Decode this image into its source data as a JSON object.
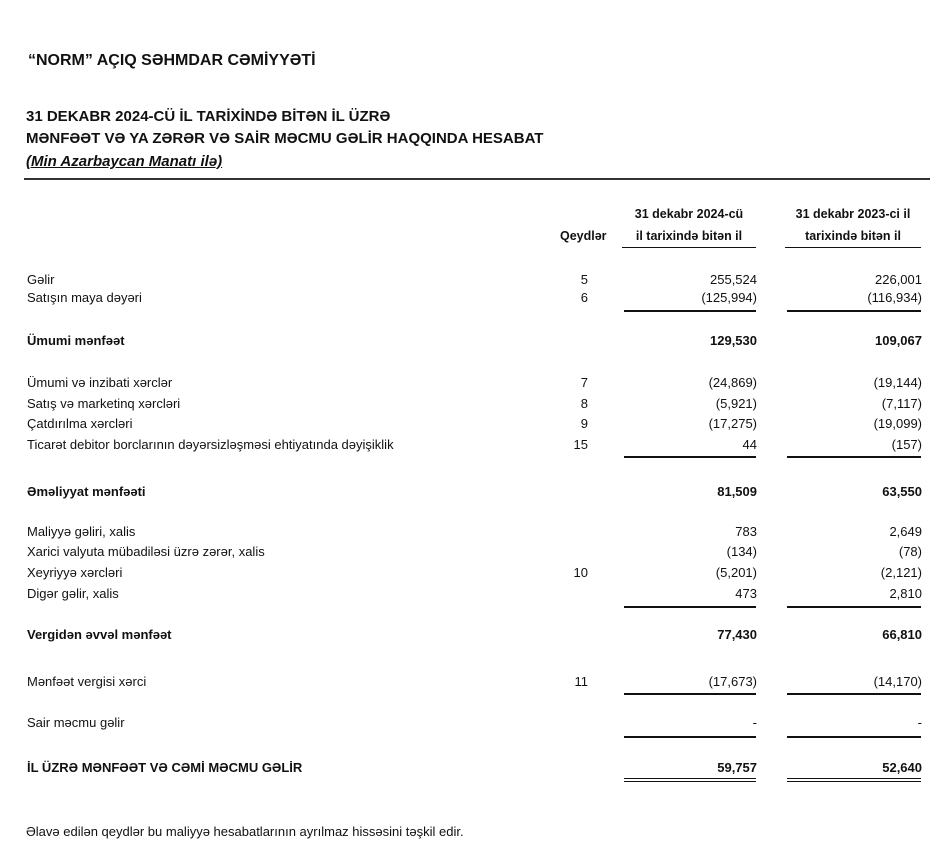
{
  "company": "“NORM” AÇIQ SƏHMDAR CƏMİYYƏTİ",
  "heading_line1": "31 DEKABR 2024-CÜ İL TARİXİNDƏ BİTƏN İL ÜZRƏ",
  "heading_line2": "MƏNFƏƏT VƏ YA ZƏRƏR VƏ SAİR MƏCMU GƏLİR HAQQINDA HESABAT",
  "currency_note": "(Min Azarbaycan Manatı ilə)",
  "columns": {
    "notes": "Qeydlər",
    "y2024_line1": "31 dekabr 2024-cü",
    "y2024_line2": "il tarixində bitən il",
    "y2023_line1": "31 dekabr 2023-ci il",
    "y2023_line2": "tarixində bitən il"
  },
  "rows": [
    {
      "label": "Gəlir",
      "note": "5",
      "v2024": "255,524",
      "v2023": "226,001"
    },
    {
      "label": "Satışın maya dəyəri",
      "note": "6",
      "v2024": "(125,994)",
      "v2023": "(116,934)"
    },
    {
      "label": "Ümumi mənfəət",
      "note": "",
      "v2024": "129,530",
      "v2023": "109,067"
    },
    {
      "label": "Ümumi və inzibati xərclər",
      "note": "7",
      "v2024": "(24,869)",
      "v2023": "(19,144)"
    },
    {
      "label": "Satış və marketinq xərcləri",
      "note": "8",
      "v2024": "(5,921)",
      "v2023": "(7,117)"
    },
    {
      "label": "Çatdırılma xərcləri",
      "note": "9",
      "v2024": "(17,275)",
      "v2023": "(19,099)"
    },
    {
      "label": "Ticarət debitor borclarının dəyərsizləşməsi ehtiyatında dəyişiklik",
      "note": "15",
      "v2024": "44",
      "v2023": "(157)"
    },
    {
      "label": "Əməliyyat mənfəəti",
      "note": "",
      "v2024": "81,509",
      "v2023": "63,550"
    },
    {
      "label": "Maliyyə gəliri, xalis",
      "note": "",
      "v2024": "783",
      "v2023": "2,649"
    },
    {
      "label": "Xarici valyuta mübadiləsi üzrə zərər, xalis",
      "note": "",
      "v2024": "(134)",
      "v2023": "(78)"
    },
    {
      "label": "Xeyriyyə xərcləri",
      "note": "10",
      "v2024": "(5,201)",
      "v2023": "(2,121)"
    },
    {
      "label": "Digər gəlir, xalis",
      "note": "",
      "v2024": "473",
      "v2023": "2,810"
    },
    {
      "label": "Vergidən əvvəl mənfəət",
      "note": "",
      "v2024": "77,430",
      "v2023": "66,810"
    },
    {
      "label": "Mənfəət vergisi xərci",
      "note": "11",
      "v2024": "(17,673)",
      "v2023": "(14,170)"
    },
    {
      "label": "Sair məcmu gəlir",
      "note": "",
      "v2024": "-",
      "v2023": "-"
    },
    {
      "label": "İL ÜZRƏ MƏNFƏƏT VƏ CƏMİ MƏCMU GƏLİR",
      "note": "",
      "v2024": "59,757",
      "v2023": "52,640"
    }
  ],
  "footer": "Əlavə edilən qeydlər bu maliyyə hesabatlarının ayrılmaz hissəsini təşkil edir."
}
